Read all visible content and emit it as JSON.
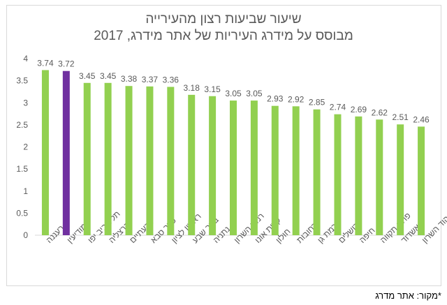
{
  "chart_data": {
    "type": "bar",
    "title": "שיעור שביעות רצון מהעירייה",
    "subtitle": "מבוסס על מידרג העיריות של אתר מידרג, 2017",
    "categories": [
      "רעננה",
      "מודיעין",
      "תל אביב יפו",
      "הרצליה",
      "גבעתיים",
      "כפר סבא",
      "ראשון לציון",
      "באר שבע",
      "נתניה",
      "רמת השרון",
      "קרית אונו",
      "חולון",
      "רחובות",
      "רמת גן",
      "ירושלים",
      "חיפה",
      "פתח תקווה",
      "אשדוד",
      "הוד השרון"
    ],
    "values": [
      3.74,
      3.72,
      3.45,
      3.45,
      3.38,
      3.37,
      3.36,
      3.18,
      3.15,
      3.05,
      3.05,
      2.93,
      2.92,
      2.85,
      2.74,
      2.69,
      2.62,
      2.51,
      2.46
    ],
    "highlight_index": 1,
    "colors": {
      "bar": "#92d050",
      "highlight": "#7030a0",
      "grid": "#d9d9d9",
      "text": "#595959"
    },
    "ylim": [
      0,
      4
    ],
    "yticks": [
      "0",
      "0.5",
      "1",
      "1.5",
      "2",
      "2.5",
      "3",
      "3.5",
      "4"
    ],
    "grid": false,
    "xlabel": "",
    "ylabel": ""
  },
  "footnote": "*מקור: אתר מדרג"
}
